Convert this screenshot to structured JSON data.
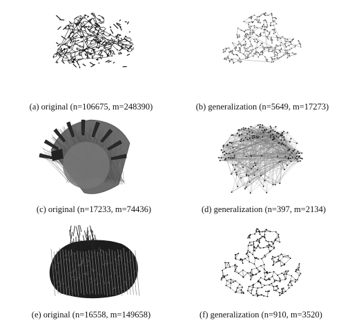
{
  "figure": {
    "panels": [
      {
        "id": "a",
        "caption": "(a) original (n=106675, m=248390)"
      },
      {
        "id": "b",
        "caption": "(b) generalization (n=5649, m=17273)"
      },
      {
        "id": "c",
        "caption": "(c) original (n=17233, m=74436)"
      },
      {
        "id": "d",
        "caption": "(d) generalization (n=397, m=2134)"
      },
      {
        "id": "e",
        "caption": "(e) original (n=16558, m=149658)"
      },
      {
        "id": "f",
        "caption": "(f) generalization (n=910, m=3520)"
      }
    ]
  }
}
